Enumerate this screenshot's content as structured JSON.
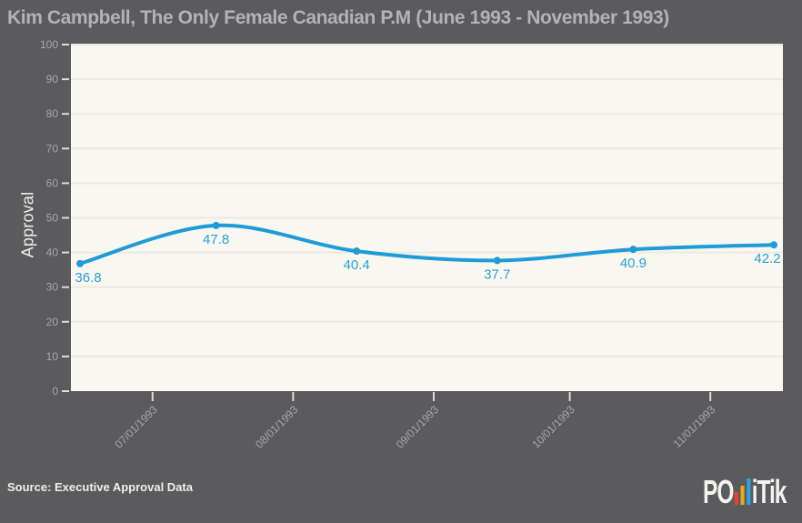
{
  "header": {
    "title": "Kim Campbell, The Only Female Canadian P.M (June 1993 - November 1993)"
  },
  "chart_data": {
    "type": "line",
    "title": "Kim Campbell, The Only Female Canadian P.M (June 1993 - November 1993)",
    "xlabel": "",
    "ylabel": "Approval",
    "series_name": "Approval",
    "x": [
      "06/15/1993",
      "07/15/1993",
      "08/15/1993",
      "09/15/1993",
      "10/15/1993",
      "11/15/1993"
    ],
    "values": [
      36.8,
      47.8,
      40.4,
      37.7,
      40.9,
      42.2
    ],
    "point_labels": [
      "36.8",
      "47.8",
      "40.4",
      "37.7",
      "40.9",
      "42.2"
    ],
    "x_ticks": [
      "07/01/1993",
      "08/01/1993",
      "09/01/1993",
      "10/01/1993",
      "11/01/1993"
    ],
    "y_ticks": [
      0,
      10,
      20,
      30,
      40,
      50,
      60,
      70,
      80,
      90,
      100
    ],
    "ylim": [
      0,
      100
    ],
    "x_domain": [
      "06/13/1993",
      "11/17/1993"
    ],
    "grid": "horizontal",
    "legend": "none",
    "line_color": "#1f9cd8",
    "label_color": "#2b9fd8",
    "plot_bg": "#f8f8f0",
    "grid_color": "#eaeae2",
    "tick_color": "#dddddb",
    "tick_label_color": "#a7a6a9"
  },
  "footer": {
    "source": "Source: Executive Approval Data",
    "logo": {
      "prefix": "PO",
      "suffix": "iTik",
      "bars": [
        {
          "color": "#e0492e",
          "height": 14
        },
        {
          "color": "#f2a41b",
          "height": 21
        },
        {
          "color": "#29a3dc",
          "height": 29
        }
      ]
    }
  },
  "colors": {
    "page_background": "#5b5a5d",
    "title_text": "#b3b2b5",
    "accent_blue": "#1f9cd8"
  }
}
